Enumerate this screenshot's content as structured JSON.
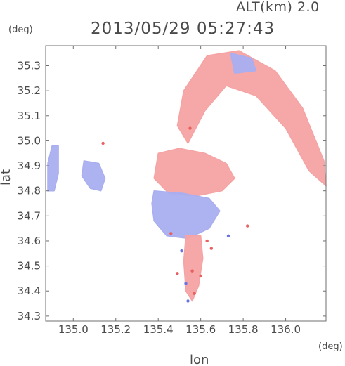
{
  "header": {
    "altitude_label": "ALT(km) 2.0",
    "timestamp": "2013/05/29 05:27:43"
  },
  "chart_data": {
    "type": "heatmap",
    "title": "2013/05/29 05:27:43",
    "subtitle": "ALT(km) 2.0",
    "xlabel": "lon",
    "ylabel": "lat",
    "x_unit": "(deg)",
    "y_unit": "(deg)",
    "xlim": [
      134.87,
      136.19
    ],
    "ylim": [
      34.28,
      35.38
    ],
    "x_ticks": [
      "135.0",
      "135.2",
      "135.4",
      "135.6",
      "135.8",
      "136.0"
    ],
    "y_ticks": [
      "34.3",
      "34.4",
      "34.5",
      "34.6",
      "34.7",
      "34.8",
      "34.9",
      "35.0",
      "35.1",
      "35.2",
      "35.3"
    ],
    "grid": false,
    "colors": {
      "positive": "#f5a3a3",
      "negative": "#a9aef0",
      "neutral": "#fbf1f1",
      "axis": "#6f6f6f",
      "text": "#4a4a4a"
    },
    "regions": [
      {
        "name": "north-arc-echo",
        "sign": "positive",
        "polygon": [
          [
            135.49,
            35.06
          ],
          [
            135.52,
            35.2
          ],
          [
            135.63,
            35.34
          ],
          [
            135.78,
            35.36
          ],
          [
            135.95,
            35.28
          ],
          [
            136.08,
            35.13
          ],
          [
            136.18,
            34.92
          ],
          [
            136.19,
            34.82
          ],
          [
            136.11,
            34.88
          ],
          [
            136.0,
            35.05
          ],
          [
            135.86,
            35.18
          ],
          [
            135.72,
            35.22
          ],
          [
            135.62,
            35.12
          ],
          [
            135.54,
            34.99
          ]
        ]
      },
      {
        "name": "north-arc-inner-blue",
        "sign": "negative",
        "polygon": [
          [
            135.74,
            35.35
          ],
          [
            135.84,
            35.33
          ],
          [
            135.86,
            35.28
          ],
          [
            135.76,
            35.27
          ]
        ]
      },
      {
        "name": "central-positive-band",
        "sign": "positive",
        "polygon": [
          [
            135.4,
            34.95
          ],
          [
            135.5,
            34.97
          ],
          [
            135.62,
            34.95
          ],
          [
            135.72,
            34.91
          ],
          [
            135.76,
            34.85
          ],
          [
            135.7,
            34.8
          ],
          [
            135.58,
            34.78
          ],
          [
            135.45,
            34.79
          ],
          [
            135.38,
            34.85
          ]
        ]
      },
      {
        "name": "central-negative-core",
        "sign": "negative",
        "polygon": [
          [
            135.38,
            34.8
          ],
          [
            135.52,
            34.79
          ],
          [
            135.64,
            34.77
          ],
          [
            135.69,
            34.72
          ],
          [
            135.64,
            34.65
          ],
          [
            135.54,
            34.61
          ],
          [
            135.44,
            34.62
          ],
          [
            135.38,
            34.68
          ],
          [
            135.37,
            34.75
          ]
        ]
      },
      {
        "name": "west-echo-far",
        "sign": "negative",
        "polygon": [
          [
            134.9,
            34.98
          ],
          [
            134.93,
            34.98
          ],
          [
            134.93,
            34.87
          ],
          [
            134.91,
            34.8
          ],
          [
            134.88,
            34.8
          ],
          [
            134.88,
            34.91
          ]
        ]
      },
      {
        "name": "west-echo-near",
        "sign": "negative",
        "polygon": [
          [
            135.05,
            34.92
          ],
          [
            135.12,
            34.91
          ],
          [
            135.15,
            34.85
          ],
          [
            135.13,
            34.8
          ],
          [
            135.08,
            34.81
          ],
          [
            135.04,
            34.86
          ]
        ]
      },
      {
        "name": "south-echo-tail",
        "sign": "positive",
        "polygon": [
          [
            135.53,
            34.62
          ],
          [
            135.6,
            34.62
          ],
          [
            135.61,
            34.53
          ],
          [
            135.59,
            34.42
          ],
          [
            135.56,
            34.36
          ],
          [
            135.53,
            34.4
          ],
          [
            135.52,
            34.52
          ]
        ]
      }
    ],
    "speckles": [
      {
        "lon": 135.46,
        "lat": 34.63,
        "sign": "positive"
      },
      {
        "lon": 135.63,
        "lat": 34.6,
        "sign": "positive"
      },
      {
        "lon": 135.65,
        "lat": 34.57,
        "sign": "positive"
      },
      {
        "lon": 135.51,
        "lat": 34.56,
        "sign": "negative"
      },
      {
        "lon": 135.56,
        "lat": 34.48,
        "sign": "positive"
      },
      {
        "lon": 135.49,
        "lat": 34.47,
        "sign": "positive"
      },
      {
        "lon": 135.6,
        "lat": 34.46,
        "sign": "positive"
      },
      {
        "lon": 135.53,
        "lat": 34.43,
        "sign": "negative"
      },
      {
        "lon": 135.57,
        "lat": 34.39,
        "sign": "positive"
      },
      {
        "lon": 135.54,
        "lat": 34.36,
        "sign": "negative"
      },
      {
        "lon": 135.82,
        "lat": 34.66,
        "sign": "positive"
      },
      {
        "lon": 135.73,
        "lat": 34.62,
        "sign": "negative"
      },
      {
        "lon": 135.14,
        "lat": 34.99,
        "sign": "positive"
      },
      {
        "lon": 135.55,
        "lat": 35.05,
        "sign": "positive"
      }
    ]
  }
}
